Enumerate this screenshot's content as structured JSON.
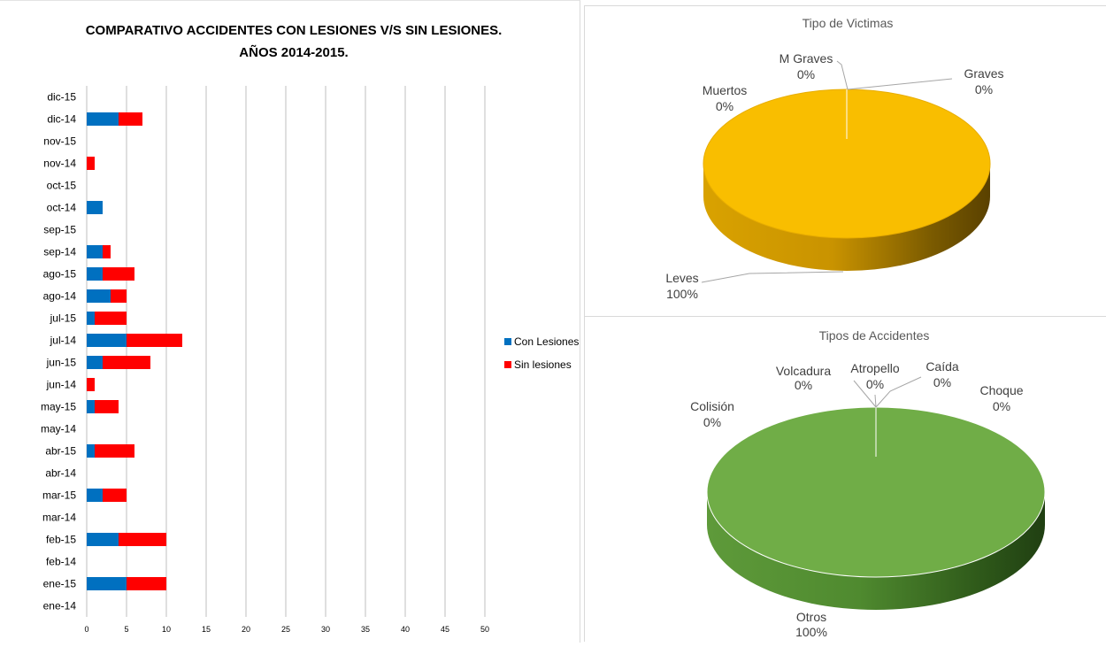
{
  "chart_data": [
    {
      "type": "bar",
      "orientation": "horizontal",
      "stacked": true,
      "title": "COMPARATIVO ACCIDENTES CON LESIONES V/S SIN LESIONES.",
      "subtitle": "AÑOS 2014-2015.",
      "categories": [
        "ene-14",
        "ene-15",
        "feb-14",
        "feb-15",
        "mar-14",
        "mar-15",
        "abr-14",
        "abr-15",
        "may-14",
        "may-15",
        "jun-14",
        "jun-15",
        "jul-14",
        "jul-15",
        "ago-14",
        "ago-15",
        "sep-14",
        "sep-15",
        "oct-14",
        "oct-15",
        "nov-14",
        "nov-15",
        "dic-14",
        "dic-15"
      ],
      "series": [
        {
          "name": "Con Lesiones",
          "color": "#0070c0",
          "values": [
            0,
            5,
            0,
            4,
            0,
            2,
            0,
            1,
            0,
            1,
            0,
            2,
            5,
            1,
            3,
            2,
            2,
            0,
            2,
            0,
            0,
            0,
            4,
            0
          ]
        },
        {
          "name": "Sin lesiones",
          "color": "#ff0000",
          "values": [
            0,
            5,
            0,
            6,
            0,
            3,
            0,
            5,
            0,
            3,
            1,
            6,
            7,
            4,
            2,
            4,
            1,
            0,
            0,
            0,
            1,
            0,
            3,
            0
          ]
        }
      ],
      "xticks": [
        "0",
        "5",
        "10",
        "15",
        "20",
        "25",
        "30",
        "35",
        "40",
        "45",
        "50"
      ],
      "xlim": [
        0,
        50
      ],
      "grid": true,
      "legend": "right"
    },
    {
      "type": "pie",
      "style": "3d",
      "title": "Tipo de  Victimas",
      "color": "#f9be00",
      "slices": [
        {
          "label": "Leves",
          "percent_label": "100%",
          "value": 100
        },
        {
          "label": "Muertos",
          "percent_label": "0%",
          "value": 0
        },
        {
          "label": "M Graves",
          "percent_label": "0%",
          "value": 0
        },
        {
          "label": "Graves",
          "percent_label": "0%",
          "value": 0
        }
      ]
    },
    {
      "type": "pie",
      "style": "3d",
      "title": "Tipos de Accidentes",
      "color": "#70ad47",
      "slices": [
        {
          "label": "Otros",
          "percent_label": "100%",
          "value": 100
        },
        {
          "label": "Colisión",
          "percent_label": "0%",
          "value": 0
        },
        {
          "label": "Volcadura",
          "percent_label": "0%",
          "value": 0
        },
        {
          "label": "Atropello",
          "percent_label": "0%",
          "value": 0
        },
        {
          "label": "Caída",
          "percent_label": "0%",
          "value": 0
        },
        {
          "label": "Choque",
          "percent_label": "0%",
          "value": 0
        }
      ]
    }
  ]
}
